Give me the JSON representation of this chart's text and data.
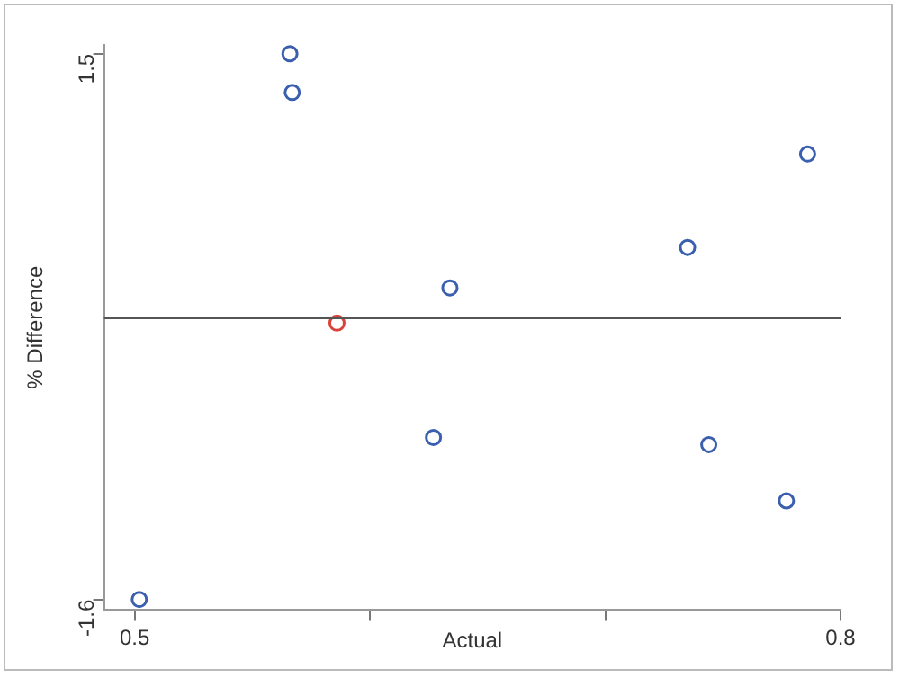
{
  "chart_data": {
    "type": "scatter",
    "xlabel": "Actual",
    "ylabel": "% Difference",
    "marker": "circle",
    "grid": false,
    "legend": false,
    "xlim": [
      0.487,
      0.8
    ],
    "ylim": [
      -1.66,
      1.55
    ],
    "xticks": [
      0.5,
      {
        "value": 0.6,
        "label": null
      },
      {
        "value": 0.7,
        "label": null
      },
      0.8
    ],
    "yticks": [
      -1.6,
      1.5
    ],
    "ref_lines": [
      {
        "axis": "y",
        "value": 0,
        "label": null,
        "color": "#555555"
      }
    ],
    "series": [
      {
        "color": "#3a5fae",
        "x": [
          0.566,
          0.567,
          0.634,
          0.627,
          0.502,
          0.735,
          0.786,
          0.744,
          0.777
        ],
        "values": [
          1.5,
          1.28,
          0.17,
          -0.68,
          -1.6,
          0.4,
          0.93,
          -0.72,
          -1.04
        ]
      },
      {
        "color": "#d9423a",
        "x": [
          0.586
        ],
        "values": [
          -0.03
        ]
      }
    ]
  }
}
